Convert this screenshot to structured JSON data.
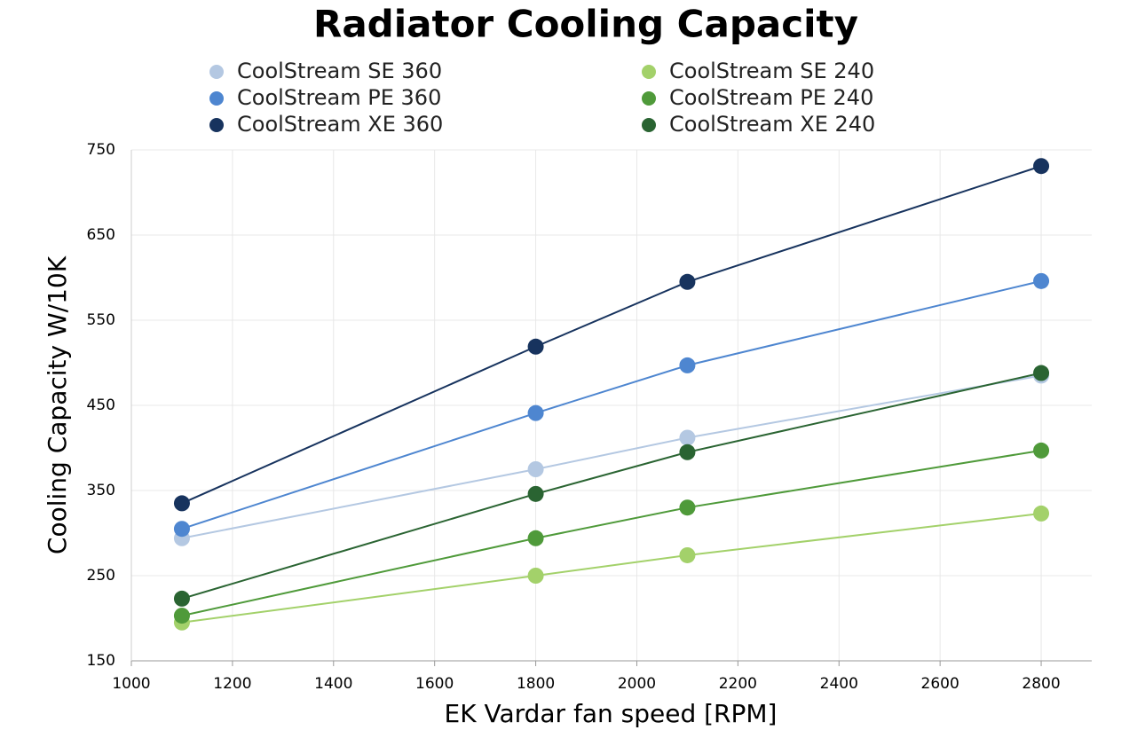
{
  "chart_data": {
    "type": "line",
    "title": "Radiator Cooling Capacity",
    "x_label": "EK Vardar fan speed [RPM]",
    "y_label": "Cooling Capacity W/10K",
    "x": [
      1100,
      1800,
      2100,
      2800
    ],
    "series": [
      {
        "name": "CoolStream SE 360",
        "color": "#b4c8e2",
        "values": [
          294,
          375,
          412,
          485
        ]
      },
      {
        "name": "CoolStream PE 360",
        "color": "#4e86d0",
        "values": [
          305,
          441,
          497,
          596
        ]
      },
      {
        "name": "CoolStream XE 360",
        "color": "#17335e",
        "values": [
          335,
          519,
          595,
          731
        ]
      },
      {
        "name": "CoolStream SE 240",
        "color": "#a3d16a",
        "values": [
          195,
          250,
          274,
          323
        ]
      },
      {
        "name": "CoolStream PE 240",
        "color": "#4f9a3a",
        "values": [
          203,
          294,
          330,
          397
        ]
      },
      {
        "name": "CoolStream XE 240",
        "color": "#2a6432",
        "values": [
          223,
          346,
          395,
          488
        ]
      }
    ],
    "xlim": [
      1000,
      2900
    ],
    "xticks": [
      1000,
      1200,
      1400,
      1600,
      1800,
      2000,
      2200,
      2400,
      2600,
      2800
    ],
    "ylim": [
      150,
      750
    ],
    "yticks": [
      150,
      250,
      350,
      450,
      550,
      650,
      750
    ],
    "grid": true
  }
}
